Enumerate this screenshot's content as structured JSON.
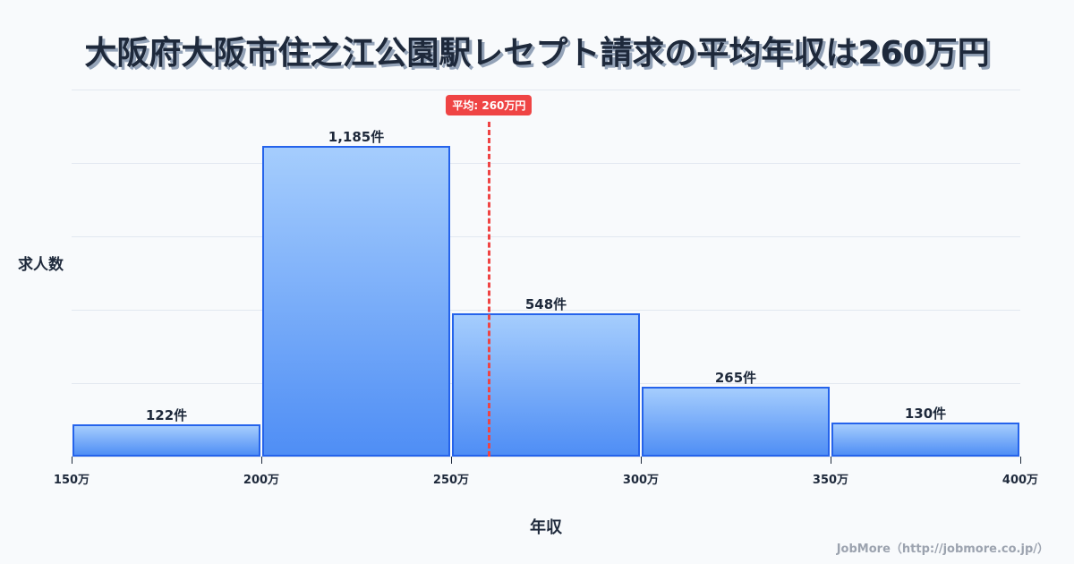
{
  "title": "大阪府大阪市住之江公園駅レセプト請求の平均年収は260万円",
  "ylabel": "求人数",
  "xlabel": "年収",
  "credit": "JobMore（http://jobmore.co.jp/）",
  "mean_badge": "平均: 260万円",
  "colors": {
    "bar_top": "#a5cdfd",
    "bar_bottom": "#4f8ef5",
    "bar_border": "#2563eb",
    "mean": "#ef4444",
    "text": "#1e293b"
  },
  "chart_data": {
    "type": "bar",
    "title": "大阪府大阪市住之江公園駅レセプト請求の平均年収は260万円",
    "xlabel": "年収",
    "ylabel": "求人数",
    "categories": [
      "150万-200万",
      "200万-250万",
      "250万-300万",
      "300万-350万",
      "350万-400万"
    ],
    "bins": [
      [
        150,
        200
      ],
      [
        200,
        250
      ],
      [
        250,
        300
      ],
      [
        300,
        350
      ],
      [
        350,
        400
      ]
    ],
    "values": [
      122,
      1185,
      548,
      265,
      130
    ],
    "value_labels": [
      "122件",
      "1,185件",
      "548件",
      "265件",
      "130件"
    ],
    "x_ticks": [
      "150万",
      "200万",
      "250万",
      "300万",
      "350万",
      "400万"
    ],
    "xlim": [
      150,
      400
    ],
    "ylim": [
      0,
      1400
    ],
    "grid": true,
    "mean": 260,
    "mean_label": "平均: 260万円",
    "legend": null
  }
}
